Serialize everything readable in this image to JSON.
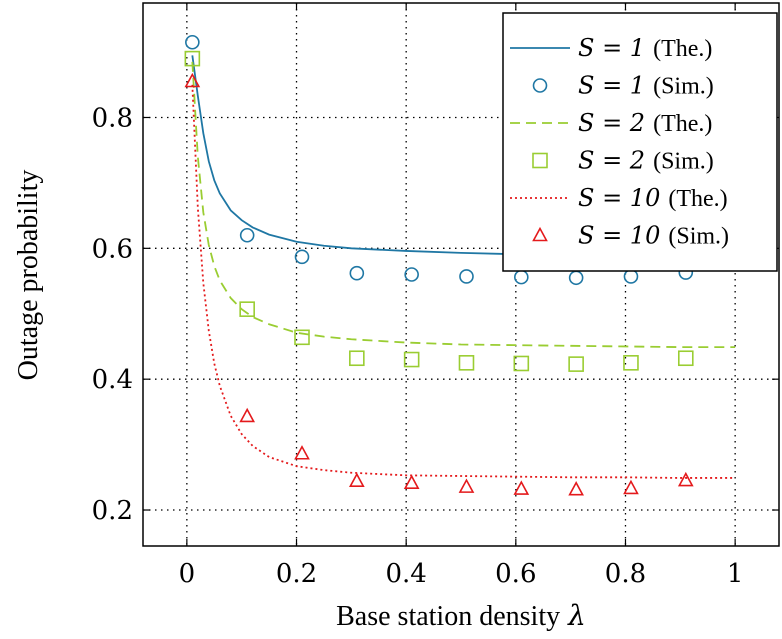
{
  "chart_data": {
    "type": "line",
    "xlabel": "Base station density",
    "xlabel_symbol": "λ",
    "ylabel": "Outage probability",
    "xlim": [
      -0.08,
      1.08
    ],
    "ylim": [
      0.145,
      0.975
    ],
    "x_ticks": [
      0,
      0.2,
      0.4,
      0.6,
      0.8,
      1
    ],
    "x_tick_labels": [
      "0",
      "0.2",
      "0.4",
      "0.6",
      "0.8",
      "1"
    ],
    "y_ticks": [
      0.2,
      0.4,
      0.6,
      0.8
    ],
    "y_tick_labels": [
      "0.2",
      "0.4",
      "0.6",
      "0.8"
    ],
    "grid": true,
    "legend_position": "top-right",
    "series": [
      {
        "name": "S = 1 (The.)",
        "math": "S = 1",
        "note": "(The.)",
        "kind": "line",
        "style": "solid",
        "color": "#1f77a4",
        "x": [
          0.01,
          0.02,
          0.03,
          0.04,
          0.05,
          0.06,
          0.08,
          0.1,
          0.12,
          0.15,
          0.2,
          0.25,
          0.3,
          0.4,
          0.5,
          0.6,
          0.7,
          0.8,
          0.9,
          1.0
        ],
        "y": [
          0.895,
          0.833,
          0.776,
          0.733,
          0.704,
          0.684,
          0.658,
          0.643,
          0.632,
          0.621,
          0.61,
          0.604,
          0.6,
          0.596,
          0.593,
          0.591,
          0.59,
          0.589,
          0.588,
          0.588
        ]
      },
      {
        "name": "S = 1 (Sim.)",
        "math": "S = 1",
        "note": "(Sim.)",
        "kind": "marker",
        "marker": "circle",
        "color": "#1f77a4",
        "x": [
          0.01,
          0.11,
          0.21,
          0.31,
          0.41,
          0.51,
          0.61,
          0.71,
          0.81,
          0.91
        ],
        "y": [
          0.915,
          0.62,
          0.587,
          0.562,
          0.56,
          0.557,
          0.556,
          0.555,
          0.557,
          0.563
        ]
      },
      {
        "name": "S = 2 (The.)",
        "math": "S = 2",
        "note": "(The.)",
        "kind": "line",
        "style": "dashed",
        "color": "#9acd32",
        "x": [
          0.01,
          0.02,
          0.03,
          0.04,
          0.05,
          0.06,
          0.08,
          0.1,
          0.12,
          0.15,
          0.2,
          0.25,
          0.3,
          0.4,
          0.5,
          0.6,
          0.7,
          0.8,
          0.9,
          1.0
        ],
        "y": [
          0.885,
          0.74,
          0.655,
          0.605,
          0.573,
          0.551,
          0.524,
          0.507,
          0.495,
          0.484,
          0.471,
          0.465,
          0.461,
          0.456,
          0.453,
          0.452,
          0.451,
          0.45,
          0.449,
          0.449
        ]
      },
      {
        "name": "S = 2 (Sim.)",
        "math": "S = 2",
        "note": "(Sim.)",
        "kind": "marker",
        "marker": "square",
        "color": "#9acd32",
        "x": [
          0.01,
          0.11,
          0.21,
          0.31,
          0.41,
          0.51,
          0.61,
          0.71,
          0.81,
          0.91
        ],
        "y": [
          0.89,
          0.507,
          0.464,
          0.432,
          0.43,
          0.425,
          0.424,
          0.423,
          0.425,
          0.432
        ]
      },
      {
        "name": "S = 10 (The.)",
        "math": "S = 10",
        "note": "(The.)",
        "kind": "line",
        "style": "dotted",
        "color": "#e41a1c",
        "x": [
          0.01,
          0.02,
          0.03,
          0.04,
          0.05,
          0.06,
          0.08,
          0.1,
          0.12,
          0.15,
          0.2,
          0.25,
          0.3,
          0.4,
          0.5,
          0.6,
          0.7,
          0.8,
          0.9,
          1.0
        ],
        "y": [
          0.85,
          0.662,
          0.547,
          0.474,
          0.424,
          0.39,
          0.344,
          0.316,
          0.298,
          0.281,
          0.267,
          0.261,
          0.257,
          0.253,
          0.252,
          0.251,
          0.25,
          0.25,
          0.249,
          0.249
        ]
      },
      {
        "name": "S = 10 (Sim.)",
        "math": "S = 10",
        "note": "(Sim.)",
        "kind": "marker",
        "marker": "triangle",
        "color": "#e41a1c",
        "x": [
          0.01,
          0.11,
          0.21,
          0.31,
          0.41,
          0.51,
          0.61,
          0.71,
          0.81,
          0.91
        ],
        "y": [
          0.855,
          0.343,
          0.286,
          0.244,
          0.241,
          0.235,
          0.232,
          0.231,
          0.233,
          0.245
        ]
      }
    ]
  }
}
